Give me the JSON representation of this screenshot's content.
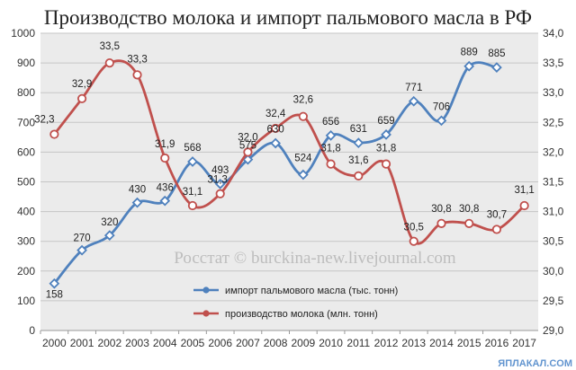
{
  "chart_data": {
    "type": "line",
    "title": "Производство молока и импорт пальмового масла в РФ",
    "categories": [
      "2000",
      "2001",
      "2002",
      "2003",
      "2004",
      "2005",
      "2006",
      "2007",
      "2008",
      "2009",
      "2010",
      "2011",
      "2012",
      "2013",
      "2014",
      "2015",
      "2016",
      "2017"
    ],
    "series": [
      {
        "name": "импорт пальмового масла (тыс. тонн)",
        "axis": "left",
        "color": "#4f81bd",
        "values": [
          158,
          270,
          320,
          430,
          436,
          568,
          493,
          575,
          630,
          524,
          656,
          631,
          659,
          771,
          706,
          889,
          885,
          null
        ],
        "labels": [
          "158",
          "270",
          "320",
          "430",
          "436",
          "568",
          "493",
          "575",
          "630",
          "524",
          "656",
          "631",
          "659",
          "771",
          "706",
          "889",
          "885",
          ""
        ]
      },
      {
        "name": "производство молока (млн. тонн)",
        "axis": "right",
        "color": "#c0504d",
        "values": [
          32.3,
          32.9,
          33.5,
          33.3,
          31.9,
          31.1,
          31.3,
          32.0,
          32.4,
          32.6,
          31.8,
          31.6,
          31.8,
          30.5,
          30.8,
          30.8,
          30.7,
          31.1
        ],
        "labels": [
          "32,3",
          "32,9",
          "33,5",
          "33,3",
          "31,9",
          "31,1",
          "31,3",
          "32,0",
          "32,4",
          "32,6",
          "31,8",
          "31,6",
          "31,8",
          "30,5",
          "30,8",
          "30,8",
          "30,7",
          "31,1"
        ]
      }
    ],
    "y_left": {
      "ylim": [
        0,
        1000
      ],
      "ticks": [
        "0",
        "100",
        "200",
        "300",
        "400",
        "500",
        "600",
        "700",
        "800",
        "900",
        "1000"
      ]
    },
    "y_right": {
      "ylim": [
        29.0,
        34.0
      ],
      "ticks": [
        "29,0",
        "29,5",
        "30,0",
        "30,5",
        "31,0",
        "31,5",
        "32,0",
        "32,5",
        "33,0",
        "33,5",
        "34,0"
      ]
    },
    "grid": true,
    "legend": "center-right",
    "watermark": "Росстат © burckina-new.livejournal.com",
    "corner_mark": "ЯПЛАКАЛ.COM"
  }
}
